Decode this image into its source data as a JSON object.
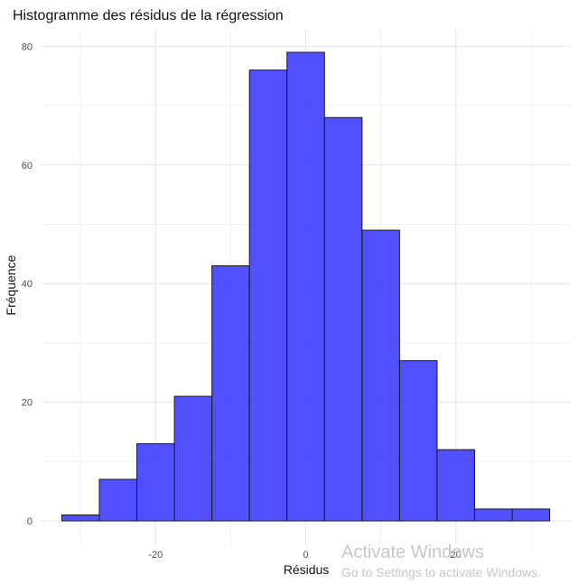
{
  "chart_data": {
    "type": "bar",
    "subtype": "histogram",
    "title": "Histogramme des résidus de la régression",
    "xlabel": "Résidus",
    "ylabel": "Fréquence",
    "bins": [
      {
        "x0": -32.5,
        "x1": -27.5,
        "count": 1
      },
      {
        "x0": -27.5,
        "x1": -22.5,
        "count": 7
      },
      {
        "x0": -22.5,
        "x1": -17.5,
        "count": 13
      },
      {
        "x0": -17.5,
        "x1": -12.5,
        "count": 21
      },
      {
        "x0": -12.5,
        "x1": -7.5,
        "count": 43
      },
      {
        "x0": -7.5,
        "x1": -2.5,
        "count": 76
      },
      {
        "x0": -2.5,
        "x1": 2.5,
        "count": 79
      },
      {
        "x0": 2.5,
        "x1": 7.5,
        "count": 68
      },
      {
        "x0": 7.5,
        "x1": 12.5,
        "count": 49
      },
      {
        "x0": 12.5,
        "x1": 17.5,
        "count": 27
      },
      {
        "x0": 17.5,
        "x1": 22.5,
        "count": 12
      },
      {
        "x0": 22.5,
        "x1": 27.5,
        "count": 2
      },
      {
        "x0": 27.5,
        "x1": 32.5,
        "count": 2
      }
    ],
    "xlim": [
      -35.2,
      35.2
    ],
    "ylim": [
      -3.95,
      82.95
    ],
    "x_ticks": [
      -20,
      0,
      20
    ],
    "x_tick_labels": [
      "-20",
      "0",
      "20"
    ],
    "y_ticks": [
      0,
      20,
      40,
      60,
      80
    ],
    "y_tick_labels": [
      "0",
      "20",
      "40",
      "60",
      "80"
    ],
    "grid": true,
    "fill_color": "#3333ff",
    "fill_opacity": 0.86,
    "edge_color": "#1a1a1a"
  },
  "watermark": {
    "line1": "Activate Windows",
    "line2": "Go to Settings to activate Windows."
  }
}
